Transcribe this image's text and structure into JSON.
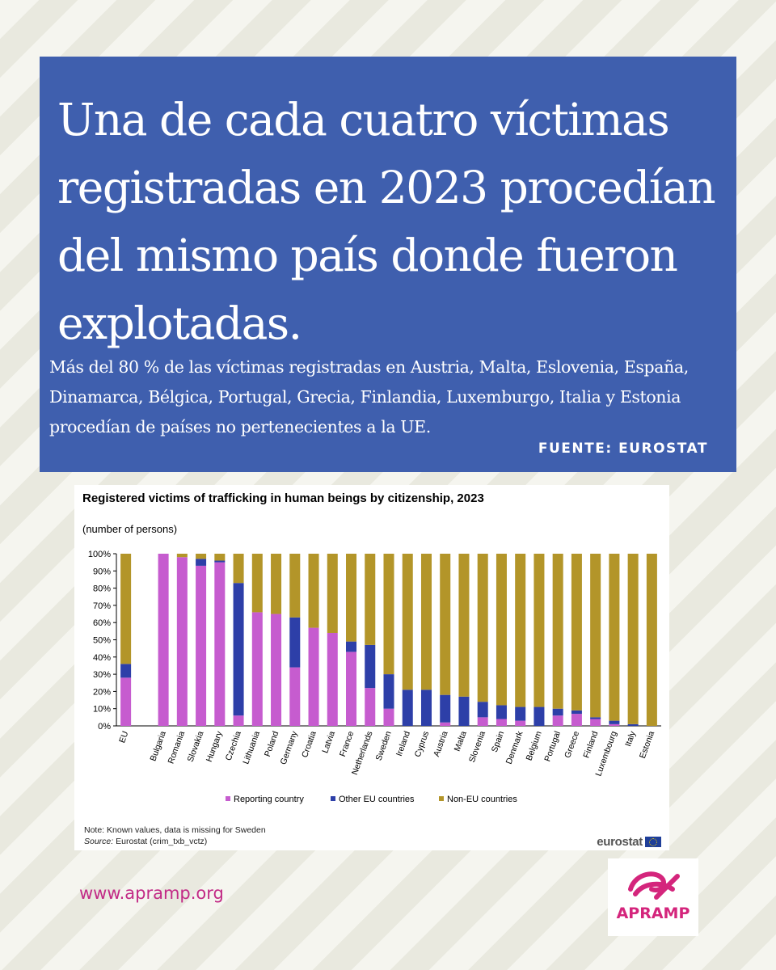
{
  "headline": "Una de cada cuatro víctimas registradas en 2023 procedían del mismo país donde fueron explotadas.",
  "subtext": "Más del 80 % de las víctimas registradas en Austria, Malta, Eslovenia, España, Dinamarca, Bélgica, Portugal, Grecia, Finlandia, Luxemburgo, Italia y Estonia procedían de países no pertenecientes a la UE.",
  "source": "FUENTE: EUROSTAT",
  "footer": {
    "note": "Note: Known values, data is missing for Sweden",
    "source_label": "Source:",
    "source_text": "Eurostat (crim_txb_vctz)",
    "eurostat": "eurostat",
    "url": "www.apramp.org",
    "logo_text": "APRAMP"
  },
  "colors": {
    "banner": "#3f5fae",
    "reporting": "#c65ccf",
    "other_eu": "#2d3fa8",
    "non_eu": "#b39529",
    "brand": "#c22a86"
  },
  "chart_data": {
    "type": "bar",
    "stacked": true,
    "title": "Registered victims of trafficking in human beings by citizenship, 2023",
    "unit": "(number  of persons)",
    "ylim": [
      0,
      100
    ],
    "yticks": [
      "0%",
      "10%",
      "20%",
      "30%",
      "40%",
      "50%",
      "60%",
      "70%",
      "80%",
      "90%",
      "100%"
    ],
    "grid": false,
    "legend_position": "bottom",
    "categories": [
      "EU",
      "",
      "Bulgaria",
      "Romania",
      "Slovakia",
      "Hungary",
      "Czechia",
      "Lithuania",
      "Poland",
      "Germany",
      "Croatia",
      "Latvia",
      "France",
      "Netherlands",
      "Sweden",
      "Ireland",
      "Cyprus",
      "Austria",
      "Malta",
      "Slovenia",
      "Spain",
      "Denmark",
      "Belgium",
      "Portugal",
      "Greece",
      "Finland",
      "Luxembourg",
      "Italy",
      "Estonia"
    ],
    "series": [
      {
        "name": "Reporting country",
        "values": [
          28,
          0,
          100,
          98,
          93,
          95,
          6,
          66,
          65,
          34,
          57,
          54,
          43,
          22,
          10,
          0,
          0,
          2,
          0,
          5,
          4,
          3,
          0,
          6,
          7,
          4,
          1,
          0,
          0
        ]
      },
      {
        "name": "Other EU countries",
        "values": [
          8,
          0,
          0,
          0,
          4,
          1,
          77,
          0,
          0,
          29,
          0,
          0,
          6,
          25,
          20,
          21,
          21,
          16,
          17,
          9,
          8,
          8,
          11,
          4,
          2,
          1,
          2,
          1,
          0
        ]
      },
      {
        "name": "Non-EU countries",
        "values": [
          64,
          0,
          0,
          2,
          3,
          4,
          17,
          34,
          35,
          37,
          43,
          46,
          51,
          53,
          70,
          79,
          79,
          82,
          83,
          86,
          88,
          89,
          89,
          90,
          91,
          95,
          97,
          99,
          100
        ]
      }
    ]
  }
}
